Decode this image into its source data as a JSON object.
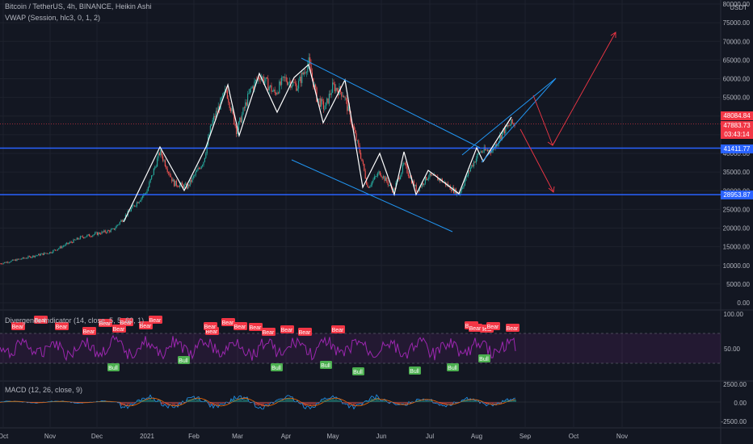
{
  "legend": {
    "main": "Bitcoin / TetherUS, 4h, BINANCE, Heikin Ashi",
    "vwap": "VWAP (Session, hlc3, 0, 1, 2)",
    "divergence": "Divergence Indicator (14, close, 5, 5, 60, 1)",
    "macd": "MACD (12, 26, close, 9)"
  },
  "price_axis": {
    "currency": "USDT",
    "ticks": [
      "80000.00",
      "75000.00",
      "70000.00",
      "65000.00",
      "60000.00",
      "55000.00",
      "50000.00",
      "45000.00",
      "40000.00",
      "35000.00",
      "30000.00",
      "25000.00",
      "20000.00",
      "15000.00",
      "10000.00",
      "5000.00",
      "0.00"
    ],
    "tick_values": [
      80000,
      75000,
      70000,
      65000,
      60000,
      55000,
      50000,
      45000,
      40000,
      35000,
      30000,
      25000,
      20000,
      15000,
      10000,
      5000,
      0
    ]
  },
  "tags": {
    "high": "48084.84",
    "last": "47883.73",
    "countdown": "03:43:14",
    "support_upper": "41411.77",
    "support_lower": "28953.87"
  },
  "time_axis": {
    "labels": [
      "Oct",
      "Nov",
      "Dec",
      "2021",
      "Feb",
      "Mar",
      "Apr",
      "May",
      "Jun",
      "Jul",
      "Aug",
      "Sep",
      "Oct",
      "Nov"
    ]
  },
  "divergence_axis": {
    "ticks": [
      "100.00",
      "50.00"
    ]
  },
  "macd_axis": {
    "ticks": [
      "2500.00",
      "0.00",
      "-2500.00"
    ]
  },
  "signals": {
    "bear": "Bear",
    "bull": "Bull"
  },
  "colors": {
    "background": "#131722",
    "up": "#26a69a",
    "down": "#ef5350",
    "support_line": "#2962ff",
    "channel_line": "#2196f3",
    "arrow": "#f23645",
    "rsi": "#9c27b0",
    "bear_label": "#f23645",
    "bull_label": "#4caf50",
    "macd": "#2196f3",
    "signal": "#ff6d00"
  },
  "chart_data": {
    "type": "candlestick",
    "title": "Bitcoin / TetherUS, 4h, BINANCE, Heikin Ashi",
    "ylim": [
      0,
      80000
    ],
    "horizontal_levels": [
      41411.77,
      28953.87
    ],
    "price_path": [
      [
        "Oct",
        10500
      ],
      [
        "Nov",
        13500
      ],
      [
        "Dec",
        19000
      ],
      [
        "2021",
        29000
      ],
      [
        "Jan mid",
        40500
      ],
      [
        "Jan end",
        31000
      ],
      [
        "Feb",
        39000
      ],
      [
        "Feb mid",
        57000
      ],
      [
        "Mar",
        46000
      ],
      [
        "Mar mid",
        61000
      ],
      [
        "Apr mid",
        64500
      ],
      [
        "Apr end",
        52000
      ],
      [
        "May",
        58000
      ],
      [
        "May mid",
        38000
      ],
      [
        "Jun",
        35000
      ],
      [
        "Jul",
        33000
      ],
      [
        "Jul end",
        29000
      ],
      [
        "Aug",
        40000
      ],
      [
        "Aug end",
        48000
      ]
    ]
  }
}
